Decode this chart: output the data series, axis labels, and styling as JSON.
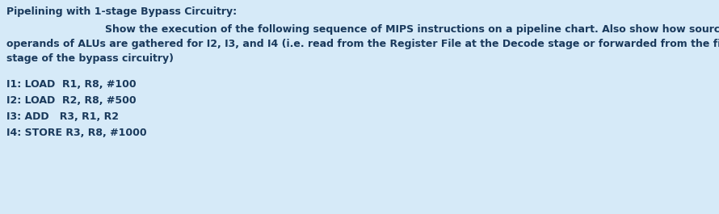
{
  "background_color": "#d6eaf8",
  "title_text": "Pipelining with 1-stage Bypass Circuitry:",
  "body_indent_text": "Show the execution of the following sequence of MIPS instructions on a pipeline chart. Also show how source",
  "body_line2": "operands of ALUs are gathered for I2, I3, and I4 (i.e. read from the Register File at the Decode stage or forwarded from the first",
  "body_line3": "stage of the bypass circuitry)",
  "instr1": "I1: LOAD  R1, R8, #100",
  "instr2": "I2: LOAD  R2, R8, #500",
  "instr3": "I3: ADD   R3, R1, R2",
  "instr4": "I4: STORE R3, R8, #1000",
  "text_color": "#1a3a5c",
  "fontsize": 9.0,
  "figsize": [
    8.9,
    2.65
  ],
  "dpi": 100
}
